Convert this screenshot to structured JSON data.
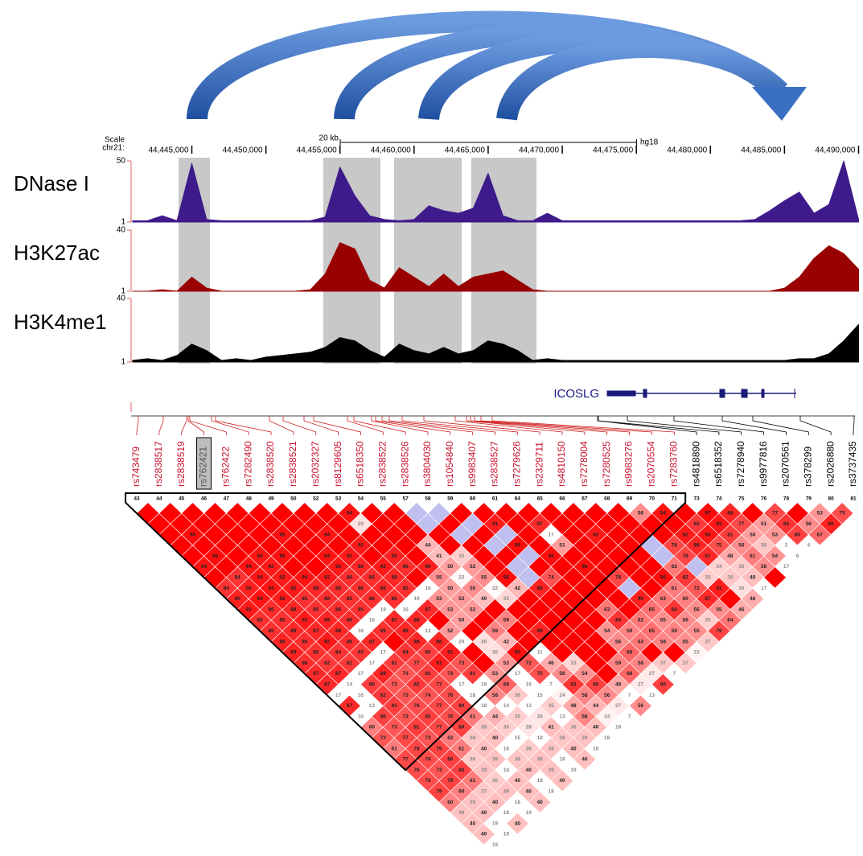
{
  "chart_data": [
    {
      "type": "area",
      "scale_label": "Scale",
      "chrom_label": "chr21:",
      "assembly": "hg18",
      "scale_bar": {
        "value": 20000,
        "label": "20 kb"
      },
      "xlim": [
        44440900,
        44490300
      ],
      "xticks": [
        {
          "value": 44445000,
          "label": "44,445,000"
        },
        {
          "value": 44450000,
          "label": "44,450,000"
        },
        {
          "value": 44455000,
          "label": "44,455,000"
        },
        {
          "value": 44460000,
          "label": "44,460,000"
        },
        {
          "value": 44465000,
          "label": "44,465,000"
        },
        {
          "value": 44470000,
          "label": "44,470,000"
        },
        {
          "value": 44475000,
          "label": "44,475,000"
        },
        {
          "value": 44480000,
          "label": "44,480,000"
        },
        {
          "value": 44485000,
          "label": "44,485,000"
        },
        {
          "value": 44490000,
          "label": "44,490,000"
        }
      ],
      "x": [
        44441000,
        44442000,
        44443000,
        44444000,
        44445000,
        44446000,
        44447000,
        44448000,
        44449000,
        44450000,
        44451000,
        44452000,
        44453000,
        44454000,
        44455000,
        44456000,
        44457000,
        44458000,
        44459000,
        44460000,
        44461000,
        44462000,
        44463000,
        44464000,
        44465000,
        44466000,
        44467000,
        44468000,
        44469000,
        44470000,
        44471000,
        44472000,
        44473000,
        44474000,
        44475000,
        44476000,
        44477000,
        44478000,
        44479000,
        44480000,
        44481000,
        44482000,
        44483000,
        44484000,
        44485000,
        44486000,
        44487000,
        44488000,
        44489000,
        44490000
      ],
      "series": [
        {
          "name": "DNase I",
          "color": "#3f1a8a",
          "ylim": [
            1,
            50
          ],
          "yticks": [
            1,
            50
          ],
          "values": [
            2,
            2,
            6,
            2,
            48,
            3,
            2,
            2,
            2,
            2,
            2,
            2,
            2,
            5,
            45,
            22,
            6,
            3,
            2,
            3,
            14,
            10,
            8,
            12,
            40,
            6,
            2,
            2,
            8,
            2,
            2,
            2,
            2,
            2,
            2,
            2,
            2,
            2,
            2,
            2,
            2,
            2,
            3,
            10,
            18,
            25,
            8,
            15,
            50,
            3
          ]
        },
        {
          "name": "H3K27ac",
          "color": "#990000",
          "ylim": [
            1,
            40
          ],
          "yticks": [
            1,
            40
          ],
          "values": [
            1,
            1,
            2,
            1,
            10,
            3,
            1,
            1,
            1,
            1,
            1,
            1,
            2,
            12,
            32,
            28,
            8,
            3,
            16,
            10,
            4,
            12,
            4,
            10,
            12,
            14,
            8,
            2,
            1,
            1,
            1,
            1,
            1,
            1,
            1,
            1,
            1,
            1,
            1,
            1,
            1,
            1,
            1,
            1,
            3,
            10,
            22,
            30,
            25,
            15
          ]
        },
        {
          "name": "H3K4me1",
          "color": "#000000",
          "ylim": [
            1,
            40
          ],
          "yticks": [
            1,
            40
          ],
          "values": [
            2,
            3,
            2,
            5,
            12,
            8,
            2,
            3,
            2,
            4,
            5,
            6,
            7,
            10,
            16,
            14,
            8,
            4,
            12,
            8,
            6,
            10,
            6,
            8,
            14,
            12,
            8,
            2,
            3,
            2,
            2,
            2,
            2,
            2,
            2,
            2,
            2,
            2,
            2,
            2,
            2,
            2,
            2,
            2,
            2,
            3,
            3,
            6,
            14,
            24
          ]
        }
      ]
    },
    {
      "type": "heatmap",
      "gene": "ICOSLG",
      "highlight": 3,
      "snps": [
        {
          "name": "rs743479",
          "color": "#c8102e"
        },
        {
          "name": "rs2838517",
          "color": "#c8102e"
        },
        {
          "name": "rs2838519",
          "color": "#c8102e"
        },
        {
          "name": "rs762421",
          "color": "#555555"
        },
        {
          "name": "rs762422",
          "color": "#c8102e"
        },
        {
          "name": "rs7282490",
          "color": "#c8102e"
        },
        {
          "name": "rs2838520",
          "color": "#c8102e"
        },
        {
          "name": "rs2838521",
          "color": "#c8102e"
        },
        {
          "name": "rs2032327",
          "color": "#c8102e"
        },
        {
          "name": "rs8129605",
          "color": "#c8102e"
        },
        {
          "name": "rs6518350",
          "color": "#c8102e"
        },
        {
          "name": "rs2838522",
          "color": "#c8102e"
        },
        {
          "name": "rs2838526",
          "color": "#c8102e"
        },
        {
          "name": "rs3804030",
          "color": "#c8102e"
        },
        {
          "name": "rs1054840",
          "color": "#c8102e"
        },
        {
          "name": "rs9983407",
          "color": "#c8102e"
        },
        {
          "name": "rs2838527",
          "color": "#c8102e"
        },
        {
          "name": "rs7279626",
          "color": "#c8102e"
        },
        {
          "name": "rs2329711",
          "color": "#c8102e"
        },
        {
          "name": "rs4810150",
          "color": "#c8102e"
        },
        {
          "name": "rs7278004",
          "color": "#c8102e"
        },
        {
          "name": "rs7280525",
          "color": "#c8102e"
        },
        {
          "name": "rs9983276",
          "color": "#c8102e"
        },
        {
          "name": "rs2070554",
          "color": "#c8102e"
        },
        {
          "name": "rs7283760",
          "color": "#c8102e"
        },
        {
          "name": "rs4818890",
          "color": "#000000"
        },
        {
          "name": "rs6518352",
          "color": "#000000"
        },
        {
          "name": "rs7278940",
          "color": "#000000"
        },
        {
          "name": "rs9977816",
          "color": "#000000"
        },
        {
          "name": "rs2070561",
          "color": "#000000"
        },
        {
          "name": "rs378299",
          "color": "#000000"
        },
        {
          "name": "rs2026880",
          "color": "#000000"
        },
        {
          "name": "rs3737435",
          "color": "#000000"
        }
      ],
      "snp_ids": [
        43,
        44,
        45,
        46,
        47,
        48,
        49,
        50,
        52,
        53,
        54,
        55,
        57,
        58,
        59,
        60,
        61,
        64,
        65,
        66,
        67,
        68,
        69,
        70,
        71,
        73,
        74,
        75,
        76,
        78,
        79,
        80,
        81
      ],
      "low_lod": [
        [
          1,
          12
        ],
        [
          1,
          13
        ],
        [
          2,
          12
        ],
        [
          2,
          14
        ],
        [
          3,
          13
        ],
        [
          3,
          15
        ],
        [
          4,
          14
        ],
        [
          5,
          15
        ],
        [
          6,
          14
        ],
        [
          7,
          14
        ],
        [
          4,
          21
        ],
        [
          5,
          21
        ],
        [
          6,
          22
        ],
        [
          8,
          18
        ]
      ],
      "values": [
        [
          null,
          null,
          null,
          null,
          null,
          null,
          null,
          null,
          null,
          94,
          null,
          null,
          null,
          null,
          null,
          null,
          null,
          null,
          null,
          null,
          null,
          null,
          56,
          94,
          null,
          97,
          88,
          null,
          77,
          null,
          53,
          75
        ],
        [
          null,
          null,
          null,
          null,
          null,
          null,
          null,
          null,
          null,
          29,
          null,
          null,
          null,
          null,
          null,
          91,
          null,
          87,
          null,
          null,
          null,
          null,
          null,
          null,
          82,
          93,
          77,
          51,
          84,
          56,
          90
        ],
        [
          null,
          96,
          null,
          null,
          null,
          95,
          null,
          94,
          null,
          null,
          null,
          null,
          null,
          null,
          null,
          null,
          null,
          17,
          null,
          92,
          null,
          null,
          null,
          92,
          93,
          81,
          50,
          53,
          80,
          67
        ],
        [
          null,
          null,
          null,
          null,
          null,
          null,
          null,
          null,
          92,
          null,
          null,
          44,
          null,
          null,
          null,
          96,
          null,
          51,
          null,
          null,
          null,
          null,
          78,
          88,
          75,
          56,
          38,
          2,
          4
        ],
        [
          null,
          96,
          null,
          94,
          95,
          null,
          94,
          92,
          null,
          90,
          null,
          41,
          35,
          null,
          null,
          null,
          96,
          null,
          null,
          null,
          null,
          null,
          78,
          87,
          48,
          61,
          54,
          6
        ],
        [
          94,
          null,
          94,
          92,
          null,
          null,
          93,
          88,
          92,
          86,
          90,
          50,
          52,
          null,
          null,
          null,
          null,
          96,
          null,
          null,
          null,
          62,
          null,
          34,
          36,
          56,
          17
        ],
        [
          null,
          84,
          94,
          92,
          94,
          92,
          86,
          86,
          88,
          null,
          55,
          22,
          55,
          96,
          null,
          74,
          null,
          null,
          78,
          null,
          96,
          82,
          35,
          38,
          40,
          null
        ],
        [
          84,
          90,
          94,
          92,
          88,
          86,
          86,
          88,
          85,
          16,
          50,
          55,
          22,
          42,
          89,
          null,
          null,
          null,
          null,
          null,
          61,
          72,
          91,
          30,
          17
        ],
        [
          90,
          94,
          92,
          85,
          86,
          85,
          86,
          85,
          19,
          53,
          52,
          40,
          33,
          null,
          null,
          null,
          null,
          null,
          90,
          63,
          60,
          87,
          null,
          46
        ],
        [
          92,
          86,
          88,
          85,
          86,
          85,
          19,
          16,
          87,
          53,
          52,
          null,
          null,
          null,
          null,
          null,
          63,
          null,
          65,
          84,
          56,
          55,
          46
        ],
        [
          85,
          85,
          92,
          89,
          86,
          16,
          87,
          88,
          null,
          50,
          null,
          59,
          null,
          null,
          null,
          null,
          84,
          62,
          55,
          56,
          35,
          64
        ],
        [
          85,
          88,
          87,
          88,
          16,
          85,
          88,
          13,
          52,
          null,
          59,
          null,
          89,
          null,
          null,
          54,
          59,
          65,
          59,
          55,
          79
        ],
        [
          89,
          86,
          92,
          86,
          87,
          null,
          88,
          88,
          20,
          30,
          42,
          null,
          null,
          null,
          null,
          56,
          63,
          58,
          55,
          37
        ],
        [
          89,
          85,
          84,
          83,
          17,
          84,
          80,
          91,
          null,
          30,
          95,
          11,
          null,
          null,
          null,
          68,
          null,
          null,
          23
        ],
        [
          86,
          82,
          82,
          17,
          81,
          77,
          91,
          73,
          null,
          53,
          72,
          46,
          33,
          null,
          59,
          58,
          37,
          37
        ],
        [
          87,
          87,
          17,
          89,
          73,
          81,
          73,
          81,
          53,
          17,
          75,
          56,
          54,
          null,
          68,
          27,
          7
        ],
        [
          87,
          14,
          80,
          73,
          82,
          77,
          17,
          18,
          69,
          16,
          7,
          83,
          80,
          48,
          27,
          80
        ],
        [
          17,
          16,
          82,
          73,
          74,
          76,
          18,
          58,
          36,
          15,
          24,
          58,
          56,
          7,
          13
        ],
        [
          87,
          13,
          81,
          76,
          77,
          80,
          18,
          14,
          13,
          35,
          48,
          44,
          27,
          56
        ],
        [
          10,
          80,
          73,
          80,
          76,
          61,
          44,
          35,
          28,
          13,
          58,
          24,
          7
        ],
        [
          60,
          73,
          81,
          77,
          80,
          38,
          35,
          28,
          41,
          38,
          40,
          18
        ],
        [
          73,
          77,
          73,
          62,
          38,
          40,
          15,
          18,
          38,
          39,
          18
        ],
        [
          61,
          78,
          79,
          61,
          40,
          18,
          36,
          38,
          40,
          18
        ],
        [
          77,
          76,
          80,
          36,
          39,
          38,
          39,
          18,
          40
        ],
        [
          76,
          73,
          80,
          39,
          18,
          40,
          39,
          19
        ],
        [
          76,
          79,
          61,
          36,
          40,
          18,
          40
        ],
        [
          79,
          60,
          37,
          39,
          40,
          18
        ],
        [
          60,
          39,
          40,
          18,
          40
        ],
        [
          39,
          40,
          18,
          19
        ],
        [
          40,
          19,
          40
        ],
        [
          40,
          19
        ],
        [
          19
        ]
      ]
    }
  ]
}
